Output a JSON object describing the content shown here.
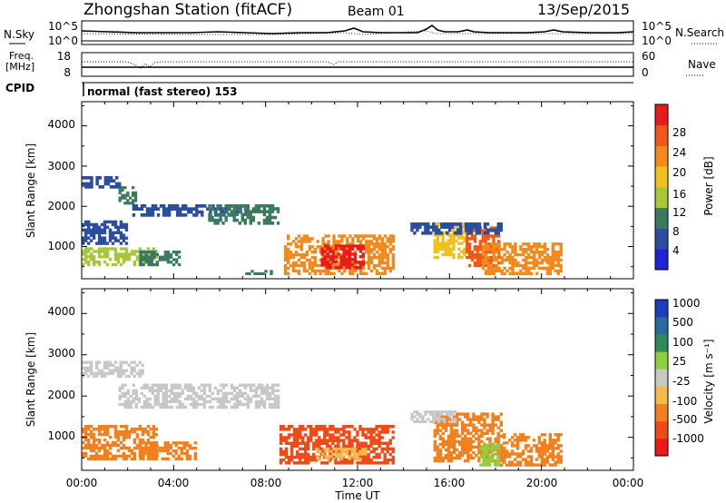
{
  "header": {
    "station_title": "Zhongshan Station (fitACF)",
    "beam": "Beam 01",
    "date": "13/Sep/2015"
  },
  "top_panels": {
    "nsky_label": "N.Sky",
    "nsky_ticks": [
      "10^5",
      "10^0"
    ],
    "nsearch_label": "N.Search",
    "nsearch_ticks": [
      "10^5",
      "10^0"
    ],
    "freq_label": [
      "Freq.",
      "[MHz]"
    ],
    "freq_ticks": [
      "18",
      "8"
    ],
    "nave_label": "Nave",
    "nave_ticks": [
      "60",
      "0"
    ],
    "cpid_label": "CPID",
    "cpid_text": "normal (fast stereo) 153"
  },
  "colors": {
    "power_scale": [
      "#1f22d8",
      "#2b4ea0",
      "#3b7a60",
      "#a8c63a",
      "#f0c020",
      "#f28a1e",
      "#f0581a",
      "#e81c1c"
    ],
    "velocity_scale": [
      "#f01818",
      "#f04a18",
      "#f2801e",
      "#f5b84a",
      "#c8c8c8",
      "#8fce3c",
      "#2e8a58",
      "#2a6aa0",
      "#1f3cc0"
    ]
  },
  "chart_data": [
    {
      "type": "heatmap",
      "name": "power",
      "ylabel": "Slant Range [km]",
      "yticks": [
        "1000",
        "2000",
        "3000",
        "4000"
      ],
      "ylim": [
        200,
        4600
      ],
      "xlim": [
        0,
        24
      ],
      "colorbar_label": "Power [dB]",
      "colorbar_ticks": [
        "4",
        "8",
        "12",
        "16",
        "20",
        "24",
        "28"
      ],
      "cells": [
        {
          "t0": 0.0,
          "t1": 3.3,
          "r0": 520,
          "r1": 980,
          "v": 14
        },
        {
          "t0": 2.5,
          "t1": 4.3,
          "r0": 520,
          "r1": 900,
          "v": 10
        },
        {
          "t0": 0.0,
          "t1": 1.7,
          "r0": 2450,
          "r1": 2750,
          "v": 6
        },
        {
          "t0": 1.6,
          "t1": 2.4,
          "r0": 2050,
          "r1": 2500,
          "v": 8
        },
        {
          "t0": 2.2,
          "t1": 7.2,
          "r0": 1750,
          "r1": 2050,
          "v": 7
        },
        {
          "t0": 5.5,
          "t1": 8.6,
          "r0": 1550,
          "r1": 2050,
          "v": 11
        },
        {
          "t0": 0.0,
          "t1": 2.0,
          "r0": 1050,
          "r1": 1650,
          "v": 7
        },
        {
          "t0": 7.0,
          "t1": 8.3,
          "r0": 300,
          "r1": 420,
          "v": 9
        },
        {
          "t0": 8.8,
          "t1": 13.6,
          "r0": 300,
          "r1": 1300,
          "v": 22
        },
        {
          "t0": 10.4,
          "t1": 12.3,
          "r0": 450,
          "r1": 1050,
          "v": 28
        },
        {
          "t0": 15.3,
          "t1": 16.7,
          "r0": 700,
          "r1": 1600,
          "v": 18
        },
        {
          "t0": 16.7,
          "t1": 18.2,
          "r0": 500,
          "r1": 1500,
          "v": 24
        },
        {
          "t0": 17.4,
          "t1": 20.9,
          "r0": 300,
          "r1": 1100,
          "v": 20
        },
        {
          "t0": 14.3,
          "t1": 18.3,
          "r0": 1300,
          "r1": 1600,
          "v": 6
        }
      ]
    },
    {
      "type": "heatmap",
      "name": "velocity",
      "ylabel": "Slant Range [km]",
      "yticks": [
        "1000",
        "2000",
        "3000",
        "4000"
      ],
      "ylim": [
        200,
        4600
      ],
      "xlim": [
        0,
        24
      ],
      "xticks": [
        "00:00",
        "04:00",
        "08:00",
        "12:00",
        "16:00",
        "20:00",
        "00:00"
      ],
      "xlabel": "Time UT",
      "colorbar_label": "Velocity [m s⁻¹]",
      "colorbar_ticks": [
        "-1000",
        "-500",
        "-100",
        "-25",
        "25",
        "100",
        "500",
        "1000"
      ],
      "cells": [
        {
          "t0": 0.0,
          "t1": 3.3,
          "r0": 450,
          "r1": 1300,
          "v": -100
        },
        {
          "t0": 2.5,
          "t1": 5.0,
          "r0": 450,
          "r1": 900,
          "v": -100
        },
        {
          "t0": 0.0,
          "t1": 2.7,
          "r0": 2450,
          "r1": 2850,
          "v": 0
        },
        {
          "t0": 1.6,
          "t1": 8.6,
          "r0": 1700,
          "r1": 2300,
          "v": 0
        },
        {
          "t0": 8.6,
          "t1": 13.6,
          "r0": 350,
          "r1": 1300,
          "v": -500
        },
        {
          "t0": 10.2,
          "t1": 12.4,
          "r0": 450,
          "r1": 750,
          "v": -25
        },
        {
          "t0": 15.3,
          "t1": 18.3,
          "r0": 400,
          "r1": 1600,
          "v": -100
        },
        {
          "t0": 17.3,
          "t1": 18.3,
          "r0": 300,
          "r1": 900,
          "v": 60
        },
        {
          "t0": 18.2,
          "t1": 20.9,
          "r0": 300,
          "r1": 1100,
          "v": -100
        },
        {
          "t0": 14.3,
          "t1": 16.3,
          "r0": 1350,
          "r1": 1650,
          "v": 0
        }
      ]
    }
  ]
}
